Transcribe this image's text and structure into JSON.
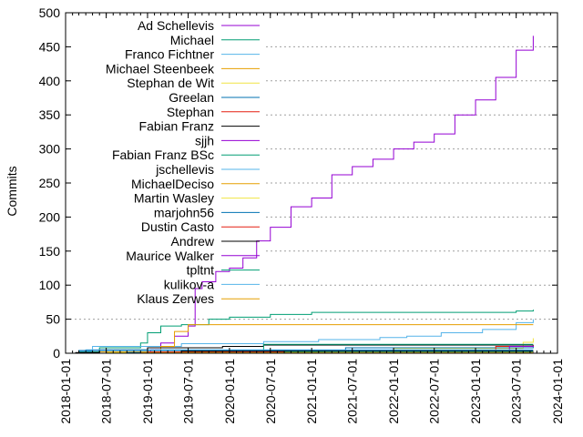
{
  "chart_data": {
    "type": "line",
    "title": "",
    "xlabel": "",
    "ylabel": "Commits",
    "ylim": [
      0,
      500
    ],
    "yticks": [
      "0",
      "50",
      "100",
      "150",
      "200",
      "250",
      "300",
      "350",
      "400",
      "450",
      "500"
    ],
    "xlim": [
      "2018-01-01",
      "2024-01-01"
    ],
    "xticks": [
      "2018-01-01",
      "2018-07-01",
      "2019-01-01",
      "2019-07-01",
      "2020-01-01",
      "2020-07-01",
      "2021-01-01",
      "2021-07-01",
      "2022-01-01",
      "2022-07-01",
      "2023-01-01",
      "2023-07-01",
      "2024-01-01"
    ],
    "grid": "y dotted",
    "legend": "top-left",
    "series": [
      {
        "name": "Ad Schellevis",
        "color": "#9400d3",
        "x": [
          "2019-01-15",
          "2019-03-01",
          "2019-05-01",
          "2019-07-01",
          "2019-08-01",
          "2019-09-01",
          "2019-11-01",
          "2020-01-01",
          "2020-03-01",
          "2020-05-01",
          "2020-07-01",
          "2020-10-01",
          "2021-01-01",
          "2021-04-01",
          "2021-07-01",
          "2021-10-01",
          "2022-01-01",
          "2022-04-01",
          "2022-07-01",
          "2022-10-01",
          "2023-01-01",
          "2023-04-01",
          "2023-07-01",
          "2023-09-15"
        ],
        "y": [
          5,
          15,
          25,
          40,
          95,
          105,
          120,
          125,
          140,
          165,
          185,
          215,
          228,
          262,
          274,
          285,
          300,
          310,
          322,
          350,
          372,
          405,
          445,
          466
        ]
      },
      {
        "name": "Michael",
        "color": "#009e73",
        "x": [
          "2018-03-01",
          "2018-06-01",
          "2018-12-01",
          "2019-01-01",
          "2019-03-01",
          "2019-06-01",
          "2019-10-01",
          "2020-01-01",
          "2020-07-01",
          "2021-01-01",
          "2022-06-01",
          "2023-07-01",
          "2023-09-15"
        ],
        "y": [
          2,
          8,
          15,
          30,
          40,
          42,
          50,
          53,
          57,
          60,
          60,
          62,
          64
        ]
      },
      {
        "name": "Franco Fichtner",
        "color": "#56b4e9",
        "x": [
          "2018-03-01",
          "2018-05-01",
          "2019-06-01",
          "2020-06-01",
          "2021-02-01",
          "2021-11-01",
          "2022-03-01",
          "2022-08-01",
          "2023-02-01",
          "2023-07-01",
          "2023-09-15"
        ],
        "y": [
          3,
          10,
          14,
          17,
          20,
          23,
          25,
          30,
          35,
          45,
          50
        ]
      },
      {
        "name": "Michael Steenbeek",
        "color": "#e69f00",
        "x": [
          "2018-06-01",
          "2019-03-01",
          "2019-05-01",
          "2019-07-01",
          "2023-09-15"
        ],
        "y": [
          2,
          10,
          32,
          42,
          42
        ]
      },
      {
        "name": "Stephan de Wit",
        "color": "#f0e442",
        "x": [
          "2018-07-01",
          "2021-09-01",
          "2022-01-01",
          "2023-08-01",
          "2023-09-15"
        ],
        "y": [
          1,
          4,
          7,
          16,
          22
        ]
      },
      {
        "name": "Greelan",
        "color": "#0072b2",
        "x": [
          "2018-10-01",
          "2021-06-01",
          "2023-09-15"
        ],
        "y": [
          1,
          8,
          12
        ]
      },
      {
        "name": "Stephan",
        "color": "#e51e10",
        "x": [
          "2023-01-01",
          "2023-04-01",
          "2023-09-15"
        ],
        "y": [
          1,
          10,
          12
        ]
      },
      {
        "name": "Fabian Franz",
        "color": "#000000",
        "x": [
          "2018-02-15",
          "2018-06-01",
          "2019-01-01",
          "2019-12-01",
          "2020-06-01",
          "2023-09-15"
        ],
        "y": [
          1,
          5,
          8,
          10,
          12,
          12
        ]
      },
      {
        "name": "sjjh",
        "color": "#9400d3",
        "x": [
          "2020-07-01",
          "2023-06-01",
          "2023-09-15"
        ],
        "y": [
          1,
          10,
          11
        ]
      },
      {
        "name": "Fabian Franz BSc",
        "color": "#009e73",
        "x": [
          "2019-06-01",
          "2020-06-01",
          "2023-09-15"
        ],
        "y": [
          3,
          13,
          13
        ]
      },
      {
        "name": "jschellevis",
        "color": "#56b4e9",
        "x": [
          "2018-04-01",
          "2023-09-15"
        ],
        "y": [
          5,
          5
        ]
      },
      {
        "name": "MichaelDeciso",
        "color": "#e69f00",
        "x": [
          "2019-09-01",
          "2023-09-15"
        ],
        "y": [
          3,
          3
        ]
      },
      {
        "name": "Martin Wasley",
        "color": "#f0e442",
        "x": [
          "2020-06-01",
          "2023-09-15"
        ],
        "y": [
          2,
          3
        ]
      },
      {
        "name": "marjohn56",
        "color": "#0072b2",
        "x": [
          "2018-03-01",
          "2023-09-15"
        ],
        "y": [
          4,
          4
        ]
      },
      {
        "name": "Dustin Casto",
        "color": "#e51e10",
        "x": [
          "2019-01-01",
          "2023-09-15"
        ],
        "y": [
          2,
          2
        ]
      },
      {
        "name": "Andrew",
        "color": "#000000",
        "x": [
          "2019-06-01",
          "2023-09-15"
        ],
        "y": [
          3,
          3
        ]
      },
      {
        "name": "Maurice Walker",
        "color": "#9400d3",
        "x": [
          "2020-01-01",
          "2023-09-15"
        ],
        "y": [
          1,
          2
        ]
      },
      {
        "name": "tpltnt",
        "color": "#009e73",
        "x": [
          "2020-09-01",
          "2023-09-15"
        ],
        "y": [
          2,
          2
        ]
      },
      {
        "name": "kulikov-a",
        "color": "#56b4e9",
        "x": [
          "2021-03-01",
          "2023-09-15"
        ],
        "y": [
          1,
          1
        ]
      },
      {
        "name": "Klaus Zerwes",
        "color": "#e69f00",
        "x": [
          "2018-12-01",
          "2023-09-15"
        ],
        "y": [
          1,
          1
        ]
      }
    ]
  }
}
